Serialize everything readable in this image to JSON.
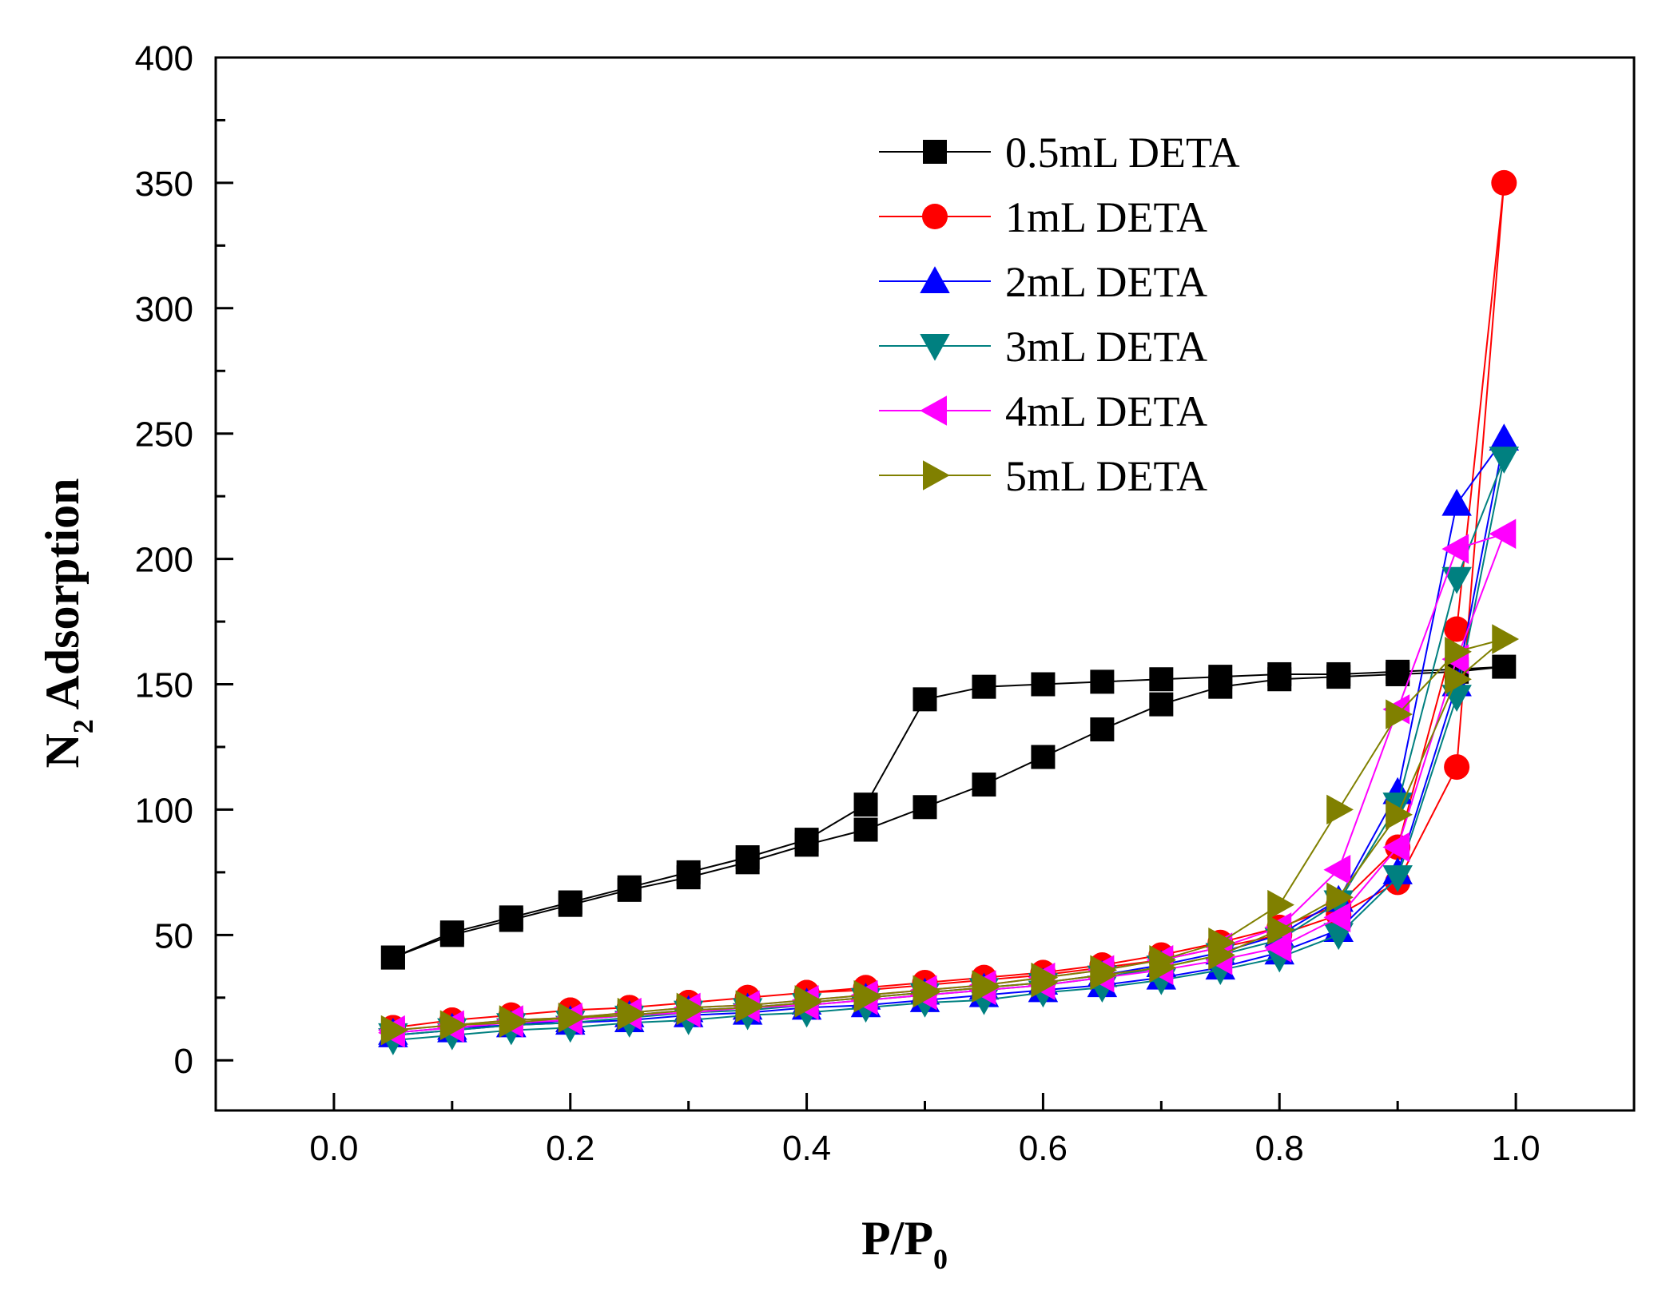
{
  "chart_data": {
    "type": "line",
    "title": "",
    "xlabel": {
      "main": "P/P",
      "sub": "0"
    },
    "ylabel": {
      "pre": "N",
      "sub": "2",
      "post": " Adsorption"
    },
    "xlim": [
      -0.1,
      1.1
    ],
    "ylim": [
      -20,
      400
    ],
    "xticks": [
      0.0,
      0.2,
      0.4,
      0.6,
      0.8,
      1.0
    ],
    "xtick_labels": [
      "0.0",
      "0.2",
      "0.4",
      "0.6",
      "0.8",
      "1.0"
    ],
    "yticks": [
      0,
      50,
      100,
      150,
      200,
      250,
      300,
      350,
      400
    ],
    "ytick_labels": [
      "0",
      "50",
      "100",
      "150",
      "200",
      "250",
      "300",
      "350",
      "400"
    ],
    "grid": false,
    "legend_position": "top-right",
    "series": [
      {
        "name": "0.5mL DETA",
        "color": "#000000",
        "marker": "square",
        "x": [
          0.05,
          0.1,
          0.15,
          0.2,
          0.25,
          0.3,
          0.35,
          0.4,
          0.45,
          0.5,
          0.55,
          0.6,
          0.65,
          0.7,
          0.75,
          0.8,
          0.85,
          0.9,
          0.95,
          0.99,
          0.95,
          0.9,
          0.85,
          0.8,
          0.75,
          0.7,
          0.65,
          0.6,
          0.55,
          0.5,
          0.45,
          0.4,
          0.35,
          0.3,
          0.25,
          0.2,
          0.15,
          0.1,
          0.05
        ],
        "y": [
          41,
          50,
          56,
          62,
          68,
          73,
          79,
          86,
          92,
          101,
          110,
          121,
          132,
          142,
          149,
          152,
          153,
          154,
          155,
          157,
          156,
          155,
          154,
          154,
          153,
          152,
          151,
          150,
          149,
          144,
          102,
          88,
          81,
          75,
          69,
          63,
          57,
          51,
          41
        ]
      },
      {
        "name": "1mL DETA",
        "color": "#ff0000",
        "marker": "circle",
        "x": [
          0.05,
          0.1,
          0.15,
          0.2,
          0.25,
          0.3,
          0.35,
          0.4,
          0.45,
          0.5,
          0.55,
          0.6,
          0.65,
          0.7,
          0.75,
          0.8,
          0.85,
          0.9,
          0.95,
          0.99,
          0.95,
          0.9,
          0.85,
          0.8,
          0.75,
          0.7,
          0.65,
          0.6,
          0.55,
          0.5,
          0.45,
          0.4,
          0.35,
          0.3,
          0.25,
          0.2,
          0.15,
          0.1,
          0.05
        ],
        "y": [
          13,
          16,
          18,
          20,
          21,
          23,
          25,
          27,
          28,
          30,
          32,
          34,
          37,
          40,
          45,
          50,
          58,
          71,
          117,
          350,
          172,
          85,
          62,
          53,
          47,
          42,
          38,
          35,
          33,
          31,
          29,
          27,
          25,
          23,
          21,
          20,
          18,
          16,
          13
        ]
      },
      {
        "name": "2mL DETA",
        "color": "#0000ff",
        "marker": "triangle-up",
        "x": [
          0.05,
          0.1,
          0.15,
          0.2,
          0.25,
          0.3,
          0.35,
          0.4,
          0.45,
          0.5,
          0.55,
          0.6,
          0.65,
          0.7,
          0.75,
          0.8,
          0.85,
          0.9,
          0.95,
          0.99,
          0.95,
          0.9,
          0.85,
          0.8,
          0.75,
          0.7,
          0.65,
          0.6,
          0.55,
          0.5,
          0.45,
          0.4,
          0.35,
          0.3,
          0.25,
          0.2,
          0.15,
          0.1,
          0.05
        ],
        "y": [
          10,
          12,
          14,
          15,
          16,
          18,
          19,
          21,
          22,
          24,
          26,
          28,
          30,
          33,
          37,
          43,
          52,
          75,
          150,
          248,
          222,
          107,
          64,
          50,
          43,
          38,
          34,
          31,
          29,
          27,
          25,
          23,
          21,
          20,
          18,
          16,
          14,
          13,
          11
        ]
      },
      {
        "name": "3mL DETA",
        "color": "#008080",
        "marker": "triangle-down",
        "x": [
          0.05,
          0.1,
          0.15,
          0.2,
          0.25,
          0.3,
          0.35,
          0.4,
          0.45,
          0.5,
          0.55,
          0.6,
          0.65,
          0.7,
          0.75,
          0.8,
          0.85,
          0.9,
          0.95,
          0.99,
          0.95,
          0.9,
          0.85,
          0.8,
          0.75,
          0.7,
          0.65,
          0.6,
          0.55,
          0.5,
          0.45,
          0.4,
          0.35,
          0.3,
          0.25,
          0.2,
          0.15,
          0.1,
          0.05
        ],
        "y": [
          8,
          10,
          12,
          13,
          15,
          16,
          18,
          19,
          21,
          23,
          24,
          27,
          29,
          32,
          36,
          41,
          50,
          73,
          145,
          240,
          192,
          102,
          63,
          48,
          42,
          37,
          33,
          30,
          28,
          26,
          24,
          22,
          20,
          19,
          17,
          15,
          14,
          12,
          10
        ]
      },
      {
        "name": "4mL DETA",
        "color": "#ff00ff",
        "marker": "triangle-left",
        "x": [
          0.05,
          0.1,
          0.15,
          0.2,
          0.25,
          0.3,
          0.35,
          0.4,
          0.45,
          0.5,
          0.55,
          0.6,
          0.65,
          0.7,
          0.75,
          0.8,
          0.85,
          0.9,
          0.95,
          0.99,
          0.95,
          0.9,
          0.85,
          0.8,
          0.75,
          0.7,
          0.65,
          0.6,
          0.55,
          0.5,
          0.45,
          0.4,
          0.35,
          0.3,
          0.25,
          0.2,
          0.15,
          0.1,
          0.05
        ],
        "y": [
          11,
          13,
          15,
          16,
          18,
          19,
          21,
          22,
          24,
          26,
          28,
          30,
          33,
          36,
          40,
          45,
          57,
          85,
          160,
          210,
          204,
          140,
          76,
          53,
          45,
          40,
          36,
          33,
          30,
          28,
          26,
          24,
          22,
          21,
          19,
          17,
          16,
          14,
          12
        ]
      },
      {
        "name": "5mL DETA",
        "color": "#808000",
        "marker": "triangle-right",
        "x": [
          0.05,
          0.1,
          0.15,
          0.2,
          0.25,
          0.3,
          0.35,
          0.4,
          0.45,
          0.5,
          0.55,
          0.6,
          0.65,
          0.7,
          0.75,
          0.8,
          0.85,
          0.9,
          0.95,
          0.99,
          0.95,
          0.9,
          0.85,
          0.8,
          0.75,
          0.7,
          0.65,
          0.6,
          0.55,
          0.5,
          0.45,
          0.4,
          0.35,
          0.3,
          0.25,
          0.2,
          0.15,
          0.1,
          0.05
        ],
        "y": [
          12,
          14,
          15,
          17,
          18,
          20,
          21,
          23,
          25,
          27,
          29,
          31,
          34,
          37,
          42,
          52,
          65,
          98,
          152,
          168,
          163,
          138,
          100,
          62,
          47,
          40,
          36,
          33,
          30,
          28,
          26,
          24,
          22,
          21,
          19,
          17,
          16,
          14,
          12
        ]
      }
    ]
  }
}
